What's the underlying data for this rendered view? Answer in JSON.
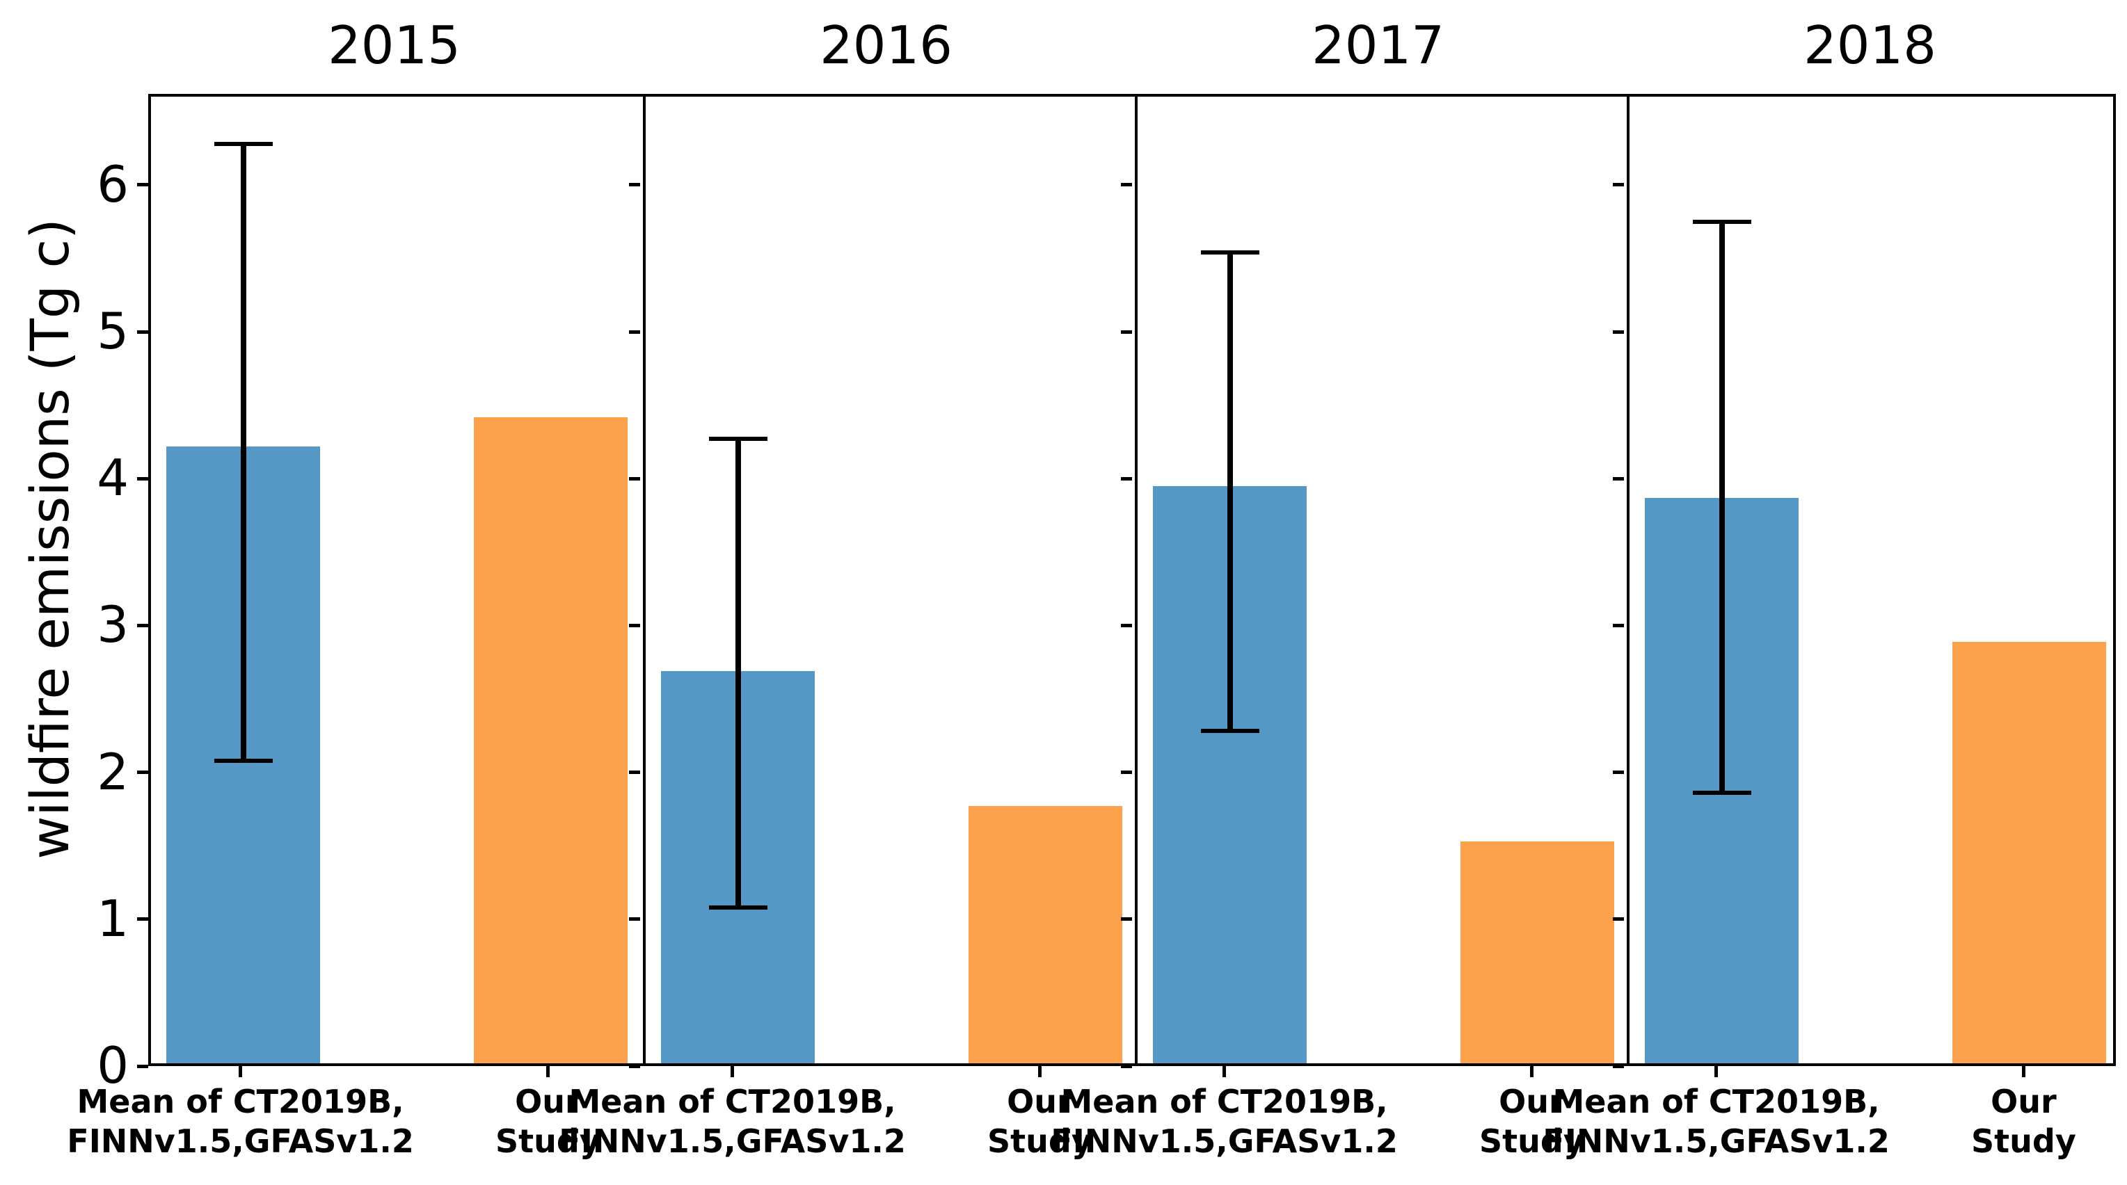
{
  "chart_data": {
    "type": "bar",
    "title": "",
    "ylabel": "wildfire emissions (Tg c)",
    "xlabel": "",
    "ylim": [
      0,
      6.62
    ],
    "yticks": [
      "0",
      "1",
      "2",
      "3",
      "4",
      "5",
      "6"
    ],
    "grid": false,
    "legend_position": "none",
    "categories": [
      [
        "Mean of CT2019B,",
        "FINNv1.5,GFASv1.2"
      ],
      [
        "Our",
        "Study"
      ]
    ],
    "colors": {
      "mean_ensemble_bar": "#5598c6",
      "our_study_bar": "#fca24c",
      "error_bar": "#000000",
      "axis": "#000000"
    },
    "panels": [
      {
        "title": "2015",
        "mean_ensemble": {
          "value": 4.2,
          "error_low": 2.1,
          "error_high": 6.3
        },
        "our_study": {
          "value": 4.4
        }
      },
      {
        "title": "2016",
        "mean_ensemble": {
          "value": 2.67,
          "error_low": 1.1,
          "error_high": 4.29
        },
        "our_study": {
          "value": 1.75
        }
      },
      {
        "title": "2017",
        "mean_ensemble": {
          "value": 3.93,
          "error_low": 2.3,
          "error_high": 5.56
        },
        "our_study": {
          "value": 1.51
        }
      },
      {
        "title": "2018",
        "mean_ensemble": {
          "value": 3.85,
          "error_low": 1.88,
          "error_high": 5.77
        },
        "our_study": {
          "value": 2.87
        }
      }
    ]
  }
}
